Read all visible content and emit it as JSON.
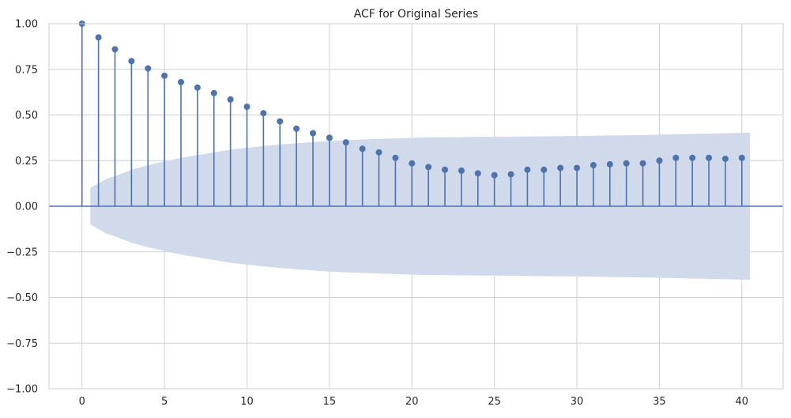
{
  "chart_data": {
    "type": "scatter",
    "subtype": "acf-stem",
    "title": "ACF for Original Series",
    "xlabel": "",
    "ylabel": "",
    "xlim": [
      -2,
      42.5
    ],
    "ylim": [
      -1.0,
      1.0
    ],
    "xticks": [
      0,
      5,
      10,
      15,
      20,
      25,
      30,
      35,
      40
    ],
    "yticks": [
      -1.0,
      -0.75,
      -0.5,
      -0.25,
      0.0,
      0.25,
      0.5,
      0.75,
      1.0
    ],
    "xtick_labels": [
      "0",
      "5",
      "10",
      "15",
      "20",
      "25",
      "30",
      "35",
      "40"
    ],
    "ytick_labels": [
      "−1.00",
      "−0.75",
      "−0.50",
      "−0.25",
      "0.00",
      "0.25",
      "0.50",
      "0.75",
      "1.00"
    ],
    "grid": true,
    "lags": [
      0,
      1,
      2,
      3,
      4,
      5,
      6,
      7,
      8,
      9,
      10,
      11,
      12,
      13,
      14,
      15,
      16,
      17,
      18,
      19,
      20,
      21,
      22,
      23,
      24,
      25,
      26,
      27,
      28,
      29,
      30,
      31,
      32,
      33,
      34,
      35,
      36,
      37,
      38,
      39,
      40
    ],
    "acf": [
      1.0,
      0.925,
      0.86,
      0.795,
      0.755,
      0.715,
      0.68,
      0.65,
      0.62,
      0.585,
      0.545,
      0.51,
      0.465,
      0.425,
      0.4,
      0.375,
      0.35,
      0.315,
      0.295,
      0.265,
      0.235,
      0.215,
      0.2,
      0.195,
      0.18,
      0.17,
      0.175,
      0.2,
      0.2,
      0.21,
      0.21,
      0.225,
      0.23,
      0.235,
      0.235,
      0.25,
      0.265,
      0.265,
      0.265,
      0.26,
      0.265
    ],
    "confint_lags": [
      0.5,
      1,
      1.5,
      2,
      3,
      4,
      5,
      6,
      7,
      8,
      9,
      10,
      11,
      12,
      13,
      14,
      15,
      16,
      17,
      18,
      19,
      20,
      21,
      22,
      23,
      24,
      25,
      26,
      27,
      28,
      29,
      30,
      31,
      32,
      33,
      34,
      35,
      36,
      37,
      38,
      39,
      40,
      40.5
    ],
    "confint_upper": [
      0.1,
      0.125,
      0.15,
      0.165,
      0.2,
      0.225,
      0.245,
      0.265,
      0.28,
      0.295,
      0.31,
      0.32,
      0.33,
      0.338,
      0.345,
      0.352,
      0.358,
      0.362,
      0.366,
      0.369,
      0.372,
      0.375,
      0.377,
      0.378,
      0.379,
      0.38,
      0.38,
      0.381,
      0.382,
      0.383,
      0.384,
      0.385,
      0.386,
      0.388,
      0.389,
      0.39,
      0.392,
      0.394,
      0.396,
      0.398,
      0.4,
      0.402,
      0.403
    ],
    "colors": {
      "stem": "#4c72b0",
      "confint_fill": "#d1daeb",
      "grid": "#cfcfcf",
      "zero_line": "#4c72b0"
    }
  }
}
